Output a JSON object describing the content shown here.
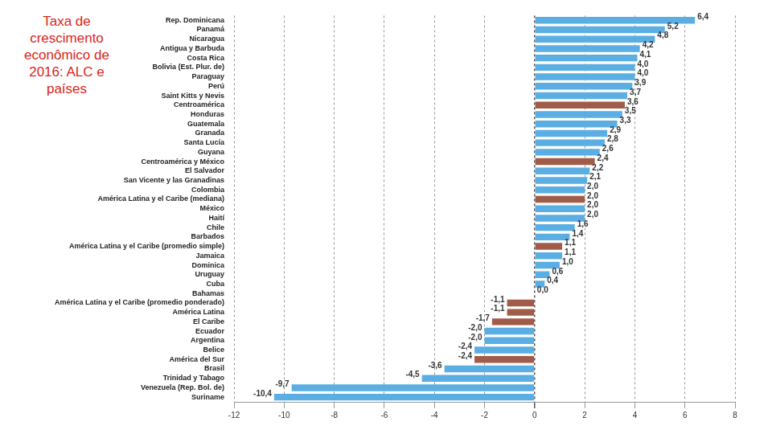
{
  "chart_data": {
    "type": "bar",
    "title": "Taxa de crescimento econômico de 2016: ALC e países",
    "orientation": "horizontal",
    "categories": [
      "Rep. Dominicana",
      "Panamá",
      "Nicaragua",
      "Antigua y Barbuda",
      "Costa Rica",
      "Bolivia (Est. Plur. de)",
      "Paraguay",
      "Perú",
      "Saint Kitts y Nevis",
      "Centroamérica",
      "Honduras",
      "Guatemala",
      "Granada",
      "Santa Lucía",
      "Guyana",
      "Centroamérica y México",
      "El Salvador",
      "San Vicente y las Granadinas",
      "Colombia",
      "América Latina y el Caribe (mediana)",
      "México",
      "Haití",
      "Chile",
      "Barbados",
      "América Latina y el Caribe (promedio simple)",
      "Jamaica",
      "Dominica",
      "Uruguay",
      "Cuba",
      "Bahamas",
      "América Latina y el Caribe (promedio ponderado)",
      "América Latina",
      "El Caribe",
      "Ecuador",
      "Argentina",
      "Belice",
      "América del Sur",
      "Brasil",
      "Trinidad y Tabago",
      "Venezuela (Rep. Bol. de)",
      "Suriname"
    ],
    "values": [
      6.4,
      5.2,
      4.8,
      4.2,
      4.1,
      4.0,
      4.0,
      3.9,
      3.7,
      3.6,
      3.5,
      3.3,
      2.9,
      2.8,
      2.6,
      2.4,
      2.2,
      2.1,
      2.0,
      2.0,
      2.0,
      2.0,
      1.6,
      1.4,
      1.1,
      1.1,
      1.0,
      0.6,
      0.4,
      0.0,
      -1.1,
      -1.1,
      -1.7,
      -2.0,
      -2.0,
      -2.4,
      -2.4,
      -3.6,
      -4.5,
      -9.7,
      -10.4
    ],
    "value_labels": [
      "6,4",
      "5,2",
      "4,8",
      "4,2",
      "4,1",
      "4,0",
      "4,0",
      "3,9",
      "3,7",
      "3,6",
      "3,5",
      "3,3",
      "2,9",
      "2,8",
      "2,6",
      "2,4",
      "2,2",
      "2,1",
      "2,0",
      "2,0",
      "2,0",
      "2,0",
      "1,6",
      "1,4",
      "1,1",
      "1,1",
      "1,0",
      "0,6",
      "0,4",
      "0,0",
      "-1,1",
      "-1,1",
      "-1,7",
      "-2,0",
      "-2,0",
      "-2,4",
      "-2,4",
      "-3,6",
      "-4,5",
      "-9,7",
      "-10,4"
    ],
    "colors": [
      "#5aaee3",
      "#5aaee3",
      "#5aaee3",
      "#5aaee3",
      "#5aaee3",
      "#5aaee3",
      "#5aaee3",
      "#5aaee3",
      "#5aaee3",
      "#a05c48",
      "#5aaee3",
      "#5aaee3",
      "#5aaee3",
      "#5aaee3",
      "#5aaee3",
      "#a05c48",
      "#5aaee3",
      "#5aaee3",
      "#5aaee3",
      "#a05c48",
      "#5aaee3",
      "#5aaee3",
      "#5aaee3",
      "#5aaee3",
      "#a05c48",
      "#5aaee3",
      "#5aaee3",
      "#5aaee3",
      "#5aaee3",
      "#5aaee3",
      "#a05c48",
      "#a05c48",
      "#a05c48",
      "#5aaee3",
      "#5aaee3",
      "#5aaee3",
      "#a05c48",
      "#5aaee3",
      "#5aaee3",
      "#5aaee3",
      "#5aaee3"
    ],
    "xlim": [
      -12,
      8
    ],
    "xticks": [
      -12,
      -10,
      -8,
      -6,
      -4,
      -2,
      0,
      2,
      4,
      6,
      8
    ],
    "grid": true,
    "data_labels": true
  }
}
